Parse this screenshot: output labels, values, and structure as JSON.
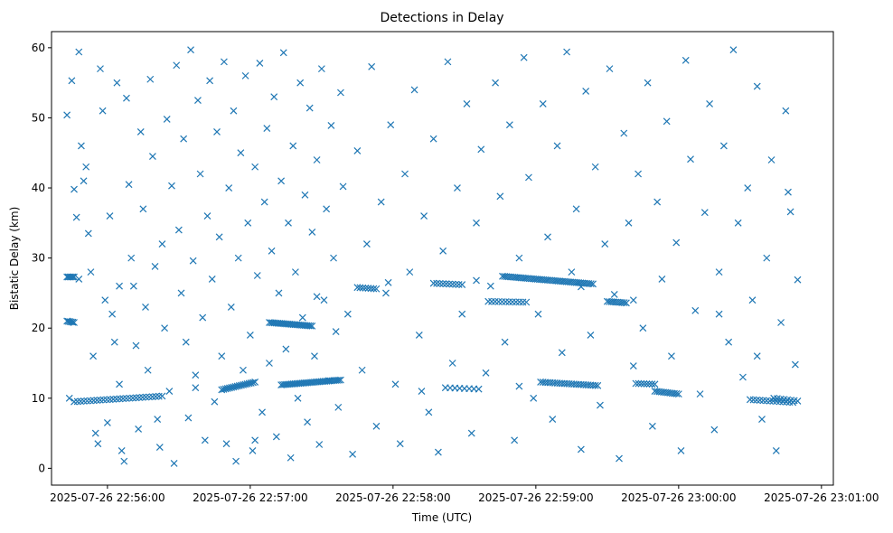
{
  "chart_data": {
    "type": "scatter",
    "title": "Detections in Delay",
    "xlabel": "Time (UTC)",
    "ylabel": "Bistatic Delay (km)",
    "x_unit": "seconds after 2025-07-26 22:56:00",
    "xlim": [
      -23.5,
      305
    ],
    "ylim": [
      -2.4,
      62.3
    ],
    "grid": false,
    "marker": "x",
    "color": "#1f77b4",
    "x_ticks": [
      {
        "value": 0,
        "label": "2025-07-26 22:56:00"
      },
      {
        "value": 60,
        "label": "2025-07-26 22:57:00"
      },
      {
        "value": 120,
        "label": "2025-07-26 22:58:00"
      },
      {
        "value": 180,
        "label": "2025-07-26 22:59:00"
      },
      {
        "value": 240,
        "label": "2025-07-26 23:00:00"
      },
      {
        "value": 300,
        "label": "2025-07-26 23:01:00"
      }
    ],
    "y_ticks": [
      0,
      10,
      20,
      30,
      40,
      50,
      60
    ],
    "tracks": [
      {
        "t0": -17,
        "t1": -14,
        "y0": 27.3,
        "y1": 27.3,
        "n": 6
      },
      {
        "t0": -17,
        "t1": -14,
        "y0": 21.0,
        "y1": 20.8,
        "n": 6
      },
      {
        "t0": -14,
        "t1": 23,
        "y0": 9.5,
        "y1": 10.3,
        "n": 28
      },
      {
        "t0": 48,
        "t1": 62,
        "y0": 11.2,
        "y1": 12.3,
        "n": 18
      },
      {
        "t0": 68,
        "t1": 86,
        "y0": 20.8,
        "y1": 20.3,
        "n": 26
      },
      {
        "t0": 73,
        "t1": 98,
        "y0": 11.9,
        "y1": 12.6,
        "n": 35
      },
      {
        "t0": 105,
        "t1": 113,
        "y0": 25.8,
        "y1": 25.6,
        "n": 8
      },
      {
        "t0": 137,
        "t1": 149,
        "y0": 26.4,
        "y1": 26.2,
        "n": 10
      },
      {
        "t0": 142,
        "t1": 156,
        "y0": 11.5,
        "y1": 11.3,
        "n": 8
      },
      {
        "t0": 160,
        "t1": 176,
        "y0": 23.8,
        "y1": 23.7,
        "n": 12
      },
      {
        "t0": 166,
        "t1": 204,
        "y0": 27.4,
        "y1": 26.3,
        "n": 45
      },
      {
        "t0": 182,
        "t1": 206,
        "y0": 12.3,
        "y1": 11.8,
        "n": 25
      },
      {
        "t0": 210,
        "t1": 218,
        "y0": 23.8,
        "y1": 23.6,
        "n": 10
      },
      {
        "t0": 222,
        "t1": 230,
        "y0": 12.1,
        "y1": 12.0,
        "n": 8
      },
      {
        "t0": 230,
        "t1": 240,
        "y0": 11.0,
        "y1": 10.6,
        "n": 12
      },
      {
        "t0": 270,
        "t1": 288,
        "y0": 9.8,
        "y1": 9.4,
        "n": 14
      },
      {
        "t0": 280,
        "t1": 290,
        "y0": 10.0,
        "y1": 9.6,
        "n": 8
      }
    ],
    "points": [
      [
        -17,
        50.4
      ],
      [
        -16,
        10
      ],
      [
        -15,
        55.3
      ],
      [
        -14,
        39.8
      ],
      [
        -13,
        35.8
      ],
      [
        -12,
        59.4
      ],
      [
        -11,
        46
      ],
      [
        -10,
        41
      ],
      [
        -9,
        43
      ],
      [
        -8,
        33.5
      ],
      [
        -7,
        28
      ],
      [
        -6,
        16
      ],
      [
        -5,
        5
      ],
      [
        -4,
        3.5
      ],
      [
        -3,
        57
      ],
      [
        -2,
        51
      ],
      [
        -1,
        24
      ],
      [
        0,
        6.5
      ],
      [
        1,
        36
      ],
      [
        2,
        22
      ],
      [
        3,
        18
      ],
      [
        4,
        55
      ],
      [
        5,
        12
      ],
      [
        6,
        2.5
      ],
      [
        7,
        1
      ],
      [
        8,
        52.8
      ],
      [
        9,
        40.5
      ],
      [
        10,
        30
      ],
      [
        11,
        26
      ],
      [
        12,
        17.5
      ],
      [
        13,
        5.6
      ],
      [
        14,
        48
      ],
      [
        15,
        37
      ],
      [
        16,
        23
      ],
      [
        17,
        14
      ],
      [
        18,
        55.5
      ],
      [
        19,
        44.5
      ],
      [
        20,
        28.8
      ],
      [
        21,
        7
      ],
      [
        22,
        3
      ],
      [
        23,
        32
      ],
      [
        24,
        20
      ],
      [
        25,
        49.8
      ],
      [
        26,
        11
      ],
      [
        27,
        40.3
      ],
      [
        28,
        0.7
      ],
      [
        29,
        57.5
      ],
      [
        30,
        34
      ],
      [
        31,
        25
      ],
      [
        32,
        47
      ],
      [
        33,
        18
      ],
      [
        34,
        7.2
      ],
      [
        35,
        59.7
      ],
      [
        36,
        29.6
      ],
      [
        37,
        13.3
      ],
      [
        38,
        52.5
      ],
      [
        39,
        42
      ],
      [
        40,
        21.5
      ],
      [
        41,
        4
      ],
      [
        42,
        36
      ],
      [
        43,
        55.3
      ],
      [
        44,
        27
      ],
      [
        45,
        9.5
      ],
      [
        46,
        48
      ],
      [
        47,
        33
      ],
      [
        48,
        16
      ],
      [
        49,
        58
      ],
      [
        50,
        3.5
      ],
      [
        51,
        40
      ],
      [
        52,
        23
      ],
      [
        53,
        51
      ],
      [
        54,
        1
      ],
      [
        55,
        30
      ],
      [
        56,
        45
      ],
      [
        57,
        14
      ],
      [
        58,
        56
      ],
      [
        59,
        35
      ],
      [
        60,
        19
      ],
      [
        61,
        2.5
      ],
      [
        62,
        43
      ],
      [
        63,
        27.5
      ],
      [
        64,
        57.8
      ],
      [
        65,
        8
      ],
      [
        66,
        38
      ],
      [
        67,
        48.5
      ],
      [
        68,
        15
      ],
      [
        69,
        31
      ],
      [
        70,
        53
      ],
      [
        71,
        4.5
      ],
      [
        72,
        25
      ],
      [
        73,
        41
      ],
      [
        74,
        59.3
      ],
      [
        75,
        17
      ],
      [
        76,
        35
      ],
      [
        77,
        1.5
      ],
      [
        78,
        46
      ],
      [
        79,
        28
      ],
      [
        80,
        10
      ],
      [
        81,
        55
      ],
      [
        82,
        21.5
      ],
      [
        83,
        39
      ],
      [
        84,
        6.6
      ],
      [
        85,
        51.4
      ],
      [
        86,
        33.7
      ],
      [
        87,
        16
      ],
      [
        88,
        44
      ],
      [
        89,
        3.4
      ],
      [
        90,
        57
      ],
      [
        91,
        24
      ],
      [
        92,
        37
      ],
      [
        93,
        12.5
      ],
      [
        94,
        48.9
      ],
      [
        95,
        30
      ],
      [
        96,
        19.5
      ],
      [
        97,
        8.7
      ],
      [
        98,
        53.6
      ],
      [
        99,
        40.2
      ],
      [
        101,
        22
      ],
      [
        103,
        2
      ],
      [
        105,
        45.3
      ],
      [
        107,
        14
      ],
      [
        109,
        32
      ],
      [
        111,
        57.3
      ],
      [
        113,
        6
      ],
      [
        115,
        38
      ],
      [
        117,
        25
      ],
      [
        119,
        49
      ],
      [
        121,
        12
      ],
      [
        123,
        3.5
      ],
      [
        125,
        42
      ],
      [
        127,
        28
      ],
      [
        129,
        54
      ],
      [
        131,
        19
      ],
      [
        133,
        36
      ],
      [
        135,
        8
      ],
      [
        137,
        47
      ],
      [
        139,
        2.3
      ],
      [
        141,
        31
      ],
      [
        143,
        58
      ],
      [
        145,
        15
      ],
      [
        147,
        40
      ],
      [
        149,
        22
      ],
      [
        151,
        52
      ],
      [
        153,
        5
      ],
      [
        155,
        35
      ],
      [
        157,
        45.5
      ],
      [
        159,
        13.6
      ],
      [
        161,
        26
      ],
      [
        163,
        55
      ],
      [
        165,
        38.8
      ],
      [
        167,
        18
      ],
      [
        169,
        49
      ],
      [
        171,
        4
      ],
      [
        173,
        30
      ],
      [
        175,
        58.6
      ],
      [
        177,
        41.5
      ],
      [
        179,
        10
      ],
      [
        181,
        22
      ],
      [
        183,
        52
      ],
      [
        185,
        33
      ],
      [
        187,
        7
      ],
      [
        189,
        46
      ],
      [
        191,
        16.5
      ],
      [
        193,
        59.4
      ],
      [
        195,
        28
      ],
      [
        197,
        37
      ],
      [
        199,
        2.7
      ],
      [
        201,
        53.8
      ],
      [
        203,
        19
      ],
      [
        205,
        43
      ],
      [
        207,
        9
      ],
      [
        209,
        32
      ],
      [
        211,
        57
      ],
      [
        213,
        24.8
      ],
      [
        215,
        1.4
      ],
      [
        217,
        47.8
      ],
      [
        219,
        35
      ],
      [
        221,
        14.6
      ],
      [
        223,
        42
      ],
      [
        225,
        20
      ],
      [
        227,
        55
      ],
      [
        229,
        6
      ],
      [
        231,
        38
      ],
      [
        233,
        27
      ],
      [
        235,
        49.5
      ],
      [
        237,
        16
      ],
      [
        239,
        32.2
      ],
      [
        241,
        2.5
      ],
      [
        243,
        58.2
      ],
      [
        245,
        44.1
      ],
      [
        247,
        22.5
      ],
      [
        249,
        10.6
      ],
      [
        251,
        36.5
      ],
      [
        253,
        52
      ],
      [
        255,
        5.5
      ],
      [
        257,
        28
      ],
      [
        259,
        46
      ],
      [
        261,
        18
      ],
      [
        263,
        59.7
      ],
      [
        265,
        35
      ],
      [
        267,
        13
      ],
      [
        269,
        40
      ],
      [
        271,
        24
      ],
      [
        273,
        54.5
      ],
      [
        275,
        7
      ],
      [
        277,
        30
      ],
      [
        279,
        44
      ],
      [
        281,
        2.5
      ],
      [
        283,
        20.8
      ],
      [
        285,
        51
      ],
      [
        287,
        36.6
      ],
      [
        289,
        14.8
      ],
      [
        290,
        26.9
      ],
      [
        -12,
        27
      ],
      [
        5,
        26
      ],
      [
        37,
        11.5
      ],
      [
        62,
        4
      ],
      [
        88,
        24.5
      ],
      [
        118,
        26.5
      ],
      [
        132,
        11
      ],
      [
        155,
        26.8
      ],
      [
        173,
        11.7
      ],
      [
        199,
        25.9
      ],
      [
        221,
        24
      ],
      [
        257,
        22
      ],
      [
        273,
        16
      ],
      [
        286,
        39.4
      ]
    ]
  }
}
